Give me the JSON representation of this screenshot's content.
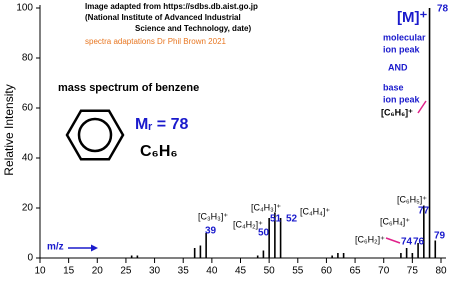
{
  "chart_data": {
    "type": "bar",
    "title": "mass spectrum of benzene",
    "credits": [
      "Image adapted from https://sdbs.db.aist.go.jp",
      "(National Institute of Advanced Industrial",
      "Science and Technology, date)"
    ],
    "adaptation": "spectra adaptations Dr Phil Brown 2021",
    "xlabel": "m/z",
    "ylabel": "Relative Intensity",
    "x": [
      26,
      27,
      37,
      38,
      39,
      48,
      49,
      50,
      51,
      52,
      61,
      62,
      63,
      73,
      74,
      75,
      76,
      77,
      78,
      79
    ],
    "values": [
      1,
      1,
      4,
      5,
      10,
      1,
      3,
      16,
      18,
      16,
      1,
      2,
      2,
      2,
      4,
      2,
      6,
      21,
      100,
      7
    ],
    "color": "#000000",
    "xlim": [
      10,
      80
    ],
    "xticks": [
      10,
      15,
      20,
      25,
      30,
      35,
      40,
      45,
      50,
      55,
      60,
      65,
      70,
      75,
      80
    ],
    "ylim": [
      0,
      100
    ],
    "yticks": [
      0,
      20,
      40,
      60,
      80,
      100
    ],
    "molar_mass": "Mᵣ = 78",
    "formula": "C₆H₆",
    "annotations": [
      "[M]⁺",
      "78",
      "molecular",
      "ion peak",
      "AND",
      "base",
      "ion peak",
      "[C₆H₆]⁺",
      "[C₆H₅]⁺",
      "77",
      "[C₆H₄]⁺",
      "76",
      "74",
      "[C₆H₂]⁺",
      "79",
      "[C₃H₃]⁺",
      "39",
      "[C₄H₂]⁺",
      "50",
      "[C₄H₃]⁺",
      "51",
      "52",
      "[C₄H₄]⁺"
    ]
  }
}
